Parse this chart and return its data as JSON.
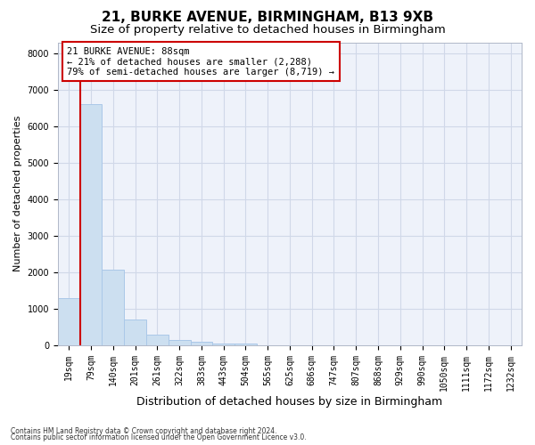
{
  "title1": "21, BURKE AVENUE, BIRMINGHAM, B13 9XB",
  "title2": "Size of property relative to detached houses in Birmingham",
  "xlabel": "Distribution of detached houses by size in Birmingham",
  "ylabel": "Number of detached properties",
  "footnote1": "Contains HM Land Registry data © Crown copyright and database right 2024.",
  "footnote2": "Contains public sector information licensed under the Open Government Licence v3.0.",
  "bar_labels": [
    "19sqm",
    "79sqm",
    "140sqm",
    "201sqm",
    "261sqm",
    "322sqm",
    "383sqm",
    "443sqm",
    "504sqm",
    "565sqm",
    "625sqm",
    "686sqm",
    "747sqm",
    "807sqm",
    "868sqm",
    "929sqm",
    "990sqm",
    "1050sqm",
    "1111sqm",
    "1172sqm",
    "1232sqm"
  ],
  "bar_values": [
    1300,
    6600,
    2070,
    700,
    290,
    150,
    100,
    60,
    60,
    0,
    0,
    0,
    0,
    0,
    0,
    0,
    0,
    0,
    0,
    0,
    0
  ],
  "bar_color": "#ccdff0",
  "bar_edge_color": "#aac8e8",
  "vline_x": 0.5,
  "vline_color": "#cc0000",
  "annotation_text": "21 BURKE AVENUE: 88sqm\n← 21% of detached houses are smaller (2,288)\n79% of semi-detached houses are larger (8,719) →",
  "ylim": [
    0,
    8300
  ],
  "yticks": [
    0,
    1000,
    2000,
    3000,
    4000,
    5000,
    6000,
    7000,
    8000
  ],
  "grid_color": "#d0d8e8",
  "background_color": "#eef2fa",
  "annotation_box_color": "#ffffff",
  "annotation_box_edge_color": "#cc0000",
  "title1_fontsize": 11,
  "title2_fontsize": 9.5,
  "xlabel_fontsize": 9,
  "ylabel_fontsize": 8,
  "tick_fontsize": 7,
  "annotation_fontsize": 7.5,
  "footnote_fontsize": 5.5
}
